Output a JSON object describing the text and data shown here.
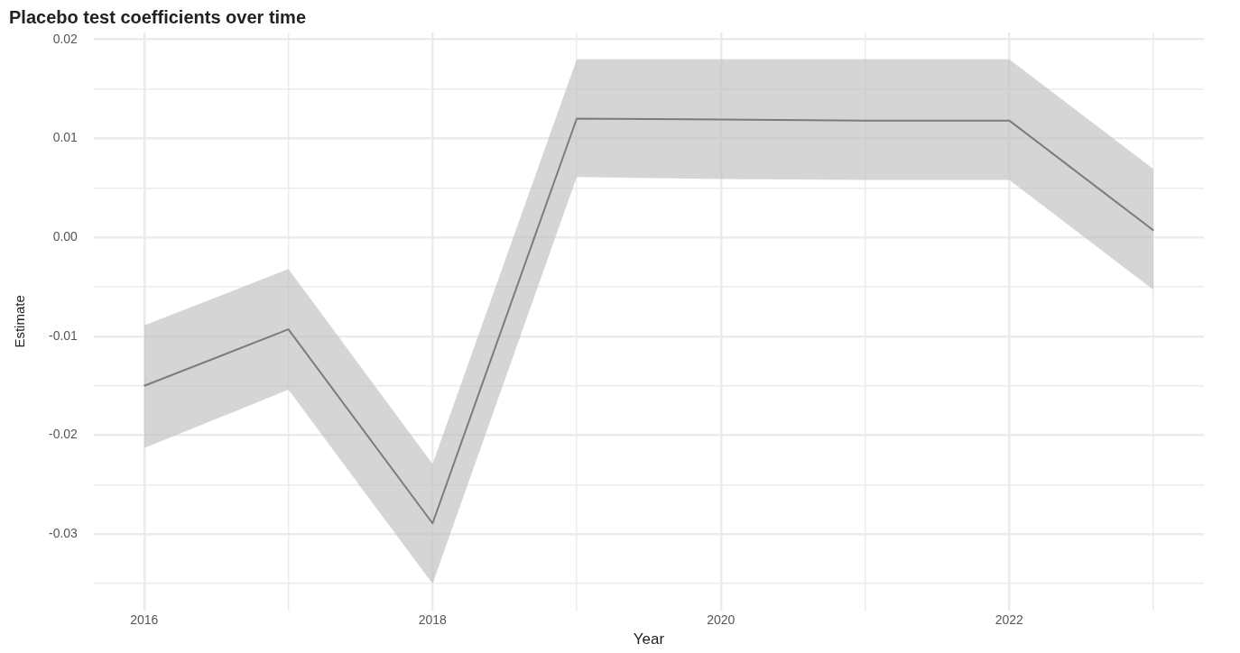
{
  "chart_data": {
    "type": "line",
    "title": "Placebo test coefficients over time",
    "xlabel": "Year",
    "ylabel": "Estimate",
    "x": [
      2016,
      2017,
      2018,
      2019,
      2020,
      2021,
      2022,
      2023
    ],
    "series": [
      {
        "color": "#000000",
        "values": [
          -0.015,
          -0.0093,
          -0.0289,
          0.012,
          0.0119,
          0.0118,
          0.0118,
          0.0007
        ],
        "lower": [
          -0.0213,
          -0.0154,
          -0.035,
          0.0061,
          0.0059,
          0.0058,
          0.0058,
          -0.0053
        ],
        "upper": [
          -0.0089,
          -0.0032,
          -0.0229,
          0.018,
          0.018,
          0.018,
          0.018,
          0.0069
        ]
      }
    ],
    "xlim": [
      2015.65,
      2023.35
    ],
    "ylim": [
      -0.0377,
      0.0207
    ],
    "xticks": [
      2016,
      {
        "value": 2017,
        "label": null
      },
      2018,
      {
        "value": 2019,
        "label": null
      },
      2020,
      {
        "value": 2021,
        "label": null
      },
      2022,
      {
        "value": 2023,
        "label": null
      }
    ],
    "yticks": [
      {
        "value": -0.035,
        "label": null
      },
      -0.03,
      {
        "value": -0.025,
        "label": null
      },
      -0.02,
      {
        "value": -0.015,
        "label": null
      },
      -0.01,
      {
        "value": -0.005,
        "label": null
      },
      {
        "value": 0,
        "label": "0.00"
      },
      {
        "value": 0.005,
        "label": null
      },
      0.01,
      {
        "value": 0.015,
        "label": null
      },
      0.02
    ],
    "grid": true,
    "marker": "none",
    "line_style": "solid"
  }
}
